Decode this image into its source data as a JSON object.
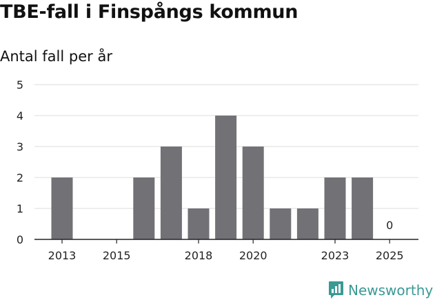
{
  "chart_data": {
    "type": "bar",
    "title": "TBE-fall i Finspångs kommun",
    "subtitle": "Antal fall per år",
    "xlabel": "",
    "ylabel": "",
    "categories": [
      "2013",
      "2014",
      "2015",
      "2016",
      "2017",
      "2018",
      "2019",
      "2020",
      "2021",
      "2022",
      "2023",
      "2024",
      "2025"
    ],
    "x_tick_labels": [
      "2013",
      "2015",
      "2018",
      "2020",
      "2023",
      "2025"
    ],
    "values": [
      2,
      0,
      0,
      2,
      3,
      1,
      4,
      3,
      1,
      1,
      2,
      2,
      0
    ],
    "data_labels": [
      {
        "category": "2025",
        "text": "0"
      }
    ],
    "yticks": [
      0,
      1,
      2,
      3,
      4,
      5
    ],
    "ylim": [
      0,
      5
    ],
    "grid": true,
    "bar_color": "#727176"
  },
  "brand": {
    "name": "Newsworthy",
    "color": "#3a9a94",
    "icon": "newsworthy-logo-icon"
  }
}
